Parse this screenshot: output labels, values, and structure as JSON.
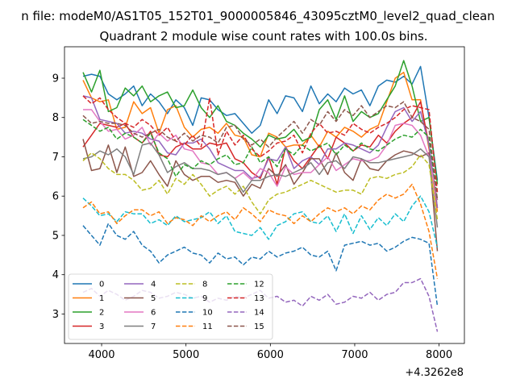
{
  "chart_data": {
    "type": "line",
    "suptitle": "n file: modeM0/AS1T05_152T01_9000005846_43095cztM0_level2_quad_clean",
    "title": "Quadrant 2 module wise count rates with 100.0s bins.",
    "xlabel": "",
    "ylabel": "",
    "x_offset_label": "+4.3262e8",
    "xlim": [
      3560,
      8300
    ],
    "ylim": [
      2.25,
      9.8
    ],
    "xticks": [
      4000,
      5000,
      6000,
      7000,
      8000
    ],
    "yticks": [
      3,
      4,
      5,
      6,
      7,
      8,
      9
    ],
    "x_start": 3780,
    "x_step": 100,
    "legend_position": "lower-left",
    "series": [
      {
        "name": "0",
        "color": "#1f77b4",
        "dash": "solid",
        "values": [
          9.05,
          9.1,
          9.05,
          8.6,
          8.45,
          8.6,
          8.8,
          8.3,
          8.6,
          8.4,
          8.1,
          8.45,
          8.25,
          7.8,
          8.5,
          8.45,
          8.2,
          8.05,
          8.1,
          7.85,
          7.6,
          7.8,
          8.45,
          8.1,
          8.55,
          8.5,
          8.15,
          8.8,
          8.35,
          8.6,
          8.4,
          8.75,
          8.6,
          8.7,
          8.3,
          8.8,
          8.95,
          8.9,
          9.05,
          8.85,
          9.3,
          8.0,
          6.4
        ]
      },
      {
        "name": "1",
        "color": "#ff7f0e",
        "dash": "solid",
        "values": [
          8.95,
          8.5,
          8.4,
          8.45,
          7.7,
          7.75,
          8.4,
          8.1,
          8.25,
          7.6,
          8.2,
          8.3,
          7.75,
          7.5,
          7.7,
          7.75,
          7.6,
          7.85,
          7.55,
          7.5,
          7.05,
          7.0,
          7.6,
          7.5,
          7.25,
          7.3,
          7.3,
          7.55,
          7.25,
          7.65,
          7.5,
          7.75,
          7.65,
          7.5,
          7.7,
          7.8,
          8.4,
          9.0,
          9.15,
          8.45,
          8.45,
          7.2,
          5.6
        ]
      },
      {
        "name": "2",
        "color": "#2ca02c",
        "dash": "solid",
        "values": [
          9.15,
          8.65,
          9.2,
          8.15,
          8.25,
          8.75,
          8.55,
          8.8,
          8.4,
          8.55,
          8.65,
          8.25,
          8.3,
          8.7,
          8.25,
          8.0,
          8.3,
          7.9,
          7.8,
          7.6,
          7.45,
          7.25,
          7.55,
          7.45,
          7.5,
          7.7,
          7.4,
          7.5,
          8.2,
          8.45,
          7.95,
          8.55,
          7.9,
          8.15,
          8.0,
          8.1,
          8.45,
          8.8,
          9.45,
          8.8,
          7.9,
          8.0,
          6.3
        ]
      },
      {
        "name": "3",
        "color": "#d62728",
        "dash": "solid",
        "values": [
          7.25,
          7.55,
          7.85,
          7.8,
          7.75,
          7.85,
          7.5,
          7.35,
          7.65,
          7.05,
          7.0,
          7.25,
          7.35,
          7.2,
          7.2,
          7.35,
          7.3,
          7.35,
          6.95,
          6.85,
          6.6,
          6.45,
          7.0,
          6.3,
          7.25,
          6.9,
          6.7,
          7.0,
          7.3,
          6.95,
          7.5,
          7.35,
          7.15,
          7.3,
          7.25,
          7.55,
          7.35,
          7.65,
          7.85,
          8.0,
          8.4,
          7.3,
          5.7
        ]
      },
      {
        "name": "4",
        "color": "#9467bd",
        "dash": "solid",
        "values": [
          8.55,
          8.5,
          7.95,
          7.9,
          7.85,
          7.6,
          7.65,
          7.6,
          7.45,
          7.4,
          7.1,
          7.05,
          7.35,
          7.35,
          7.45,
          7.2,
          6.85,
          6.75,
          6.65,
          6.65,
          6.45,
          6.5,
          6.95,
          6.9,
          7.25,
          6.7,
          6.9,
          7.0,
          6.8,
          7.2,
          7.2,
          7.35,
          7.3,
          7.2,
          7.1,
          7.3,
          7.75,
          8.15,
          8.25,
          7.9,
          8.15,
          7.3,
          5.7
        ]
      },
      {
        "name": "5",
        "color": "#8c564b",
        "dash": "solid",
        "values": [
          7.45,
          6.65,
          6.7,
          7.3,
          6.6,
          7.25,
          6.5,
          6.6,
          6.9,
          6.55,
          6.25,
          6.9,
          6.55,
          6.4,
          6.5,
          6.5,
          6.35,
          6.4,
          6.35,
          6.0,
          6.3,
          6.2,
          6.7,
          6.5,
          6.8,
          6.3,
          6.6,
          6.95,
          6.95,
          6.55,
          7.1,
          6.6,
          6.4,
          6.95,
          6.7,
          6.65,
          6.9,
          7.05,
          7.15,
          7.1,
          7.0,
          7.1,
          4.6
        ]
      },
      {
        "name": "6",
        "color": "#e377c2",
        "dash": "solid",
        "values": [
          8.2,
          8.2,
          7.9,
          7.65,
          7.7,
          7.45,
          7.55,
          7.75,
          7.3,
          7.6,
          7.4,
          7.55,
          7.2,
          7.15,
          6.85,
          6.8,
          6.55,
          6.6,
          6.45,
          6.6,
          6.4,
          6.7,
          6.6,
          6.25,
          6.75,
          6.55,
          6.6,
          6.6,
          6.8,
          7.0,
          6.65,
          6.8,
          6.95,
          6.9,
          6.9,
          7.0,
          7.3,
          7.8,
          7.85,
          7.8,
          7.55,
          7.0,
          5.9
        ]
      },
      {
        "name": "7",
        "color": "#7f7f7f",
        "dash": "solid",
        "values": [
          6.95,
          7.0,
          7.15,
          7.05,
          7.2,
          7.0,
          6.55,
          7.3,
          7.35,
          7.05,
          6.6,
          6.75,
          6.85,
          6.7,
          6.7,
          6.65,
          6.55,
          6.6,
          6.45,
          6.1,
          6.4,
          6.4,
          6.5,
          6.55,
          6.5,
          6.6,
          6.7,
          6.85,
          6.55,
          6.85,
          6.9,
          6.7,
          7.0,
          6.95,
          6.85,
          6.85,
          6.9,
          6.95,
          7.0,
          7.05,
          7.2,
          7.0,
          5.2
        ]
      },
      {
        "name": "8",
        "color": "#bcbd22",
        "dash": "dashed",
        "values": [
          6.9,
          7.1,
          6.95,
          6.7,
          6.55,
          6.55,
          6.4,
          6.15,
          6.2,
          6.4,
          6.05,
          6.45,
          6.3,
          6.55,
          6.3,
          6.0,
          6.15,
          6.25,
          6.05,
          6.25,
          5.85,
          5.55,
          5.9,
          6.05,
          6.1,
          6.2,
          6.3,
          6.4,
          6.3,
          6.2,
          6.1,
          6.15,
          6.15,
          6.05,
          6.45,
          6.5,
          6.45,
          6.55,
          6.6,
          6.75,
          7.05,
          6.8,
          5.4
        ]
      },
      {
        "name": "9",
        "color": "#17becf",
        "dash": "dashed",
        "values": [
          5.95,
          5.75,
          5.5,
          5.55,
          5.35,
          5.6,
          5.55,
          5.55,
          5.3,
          5.4,
          5.25,
          5.5,
          5.35,
          5.4,
          5.45,
          5.6,
          5.3,
          5.5,
          5.1,
          5.05,
          5.0,
          5.2,
          4.9,
          5.25,
          5.35,
          5.55,
          5.6,
          5.35,
          5.3,
          5.5,
          5.1,
          5.55,
          5.05,
          5.5,
          5.15,
          5.45,
          5.25,
          5.55,
          5.35,
          5.75,
          6.0,
          5.6,
          4.7
        ]
      },
      {
        "name": "10",
        "color": "#1f77b4",
        "dash": "dashed",
        "values": [
          5.25,
          5.0,
          4.75,
          5.3,
          5.0,
          4.9,
          5.1,
          4.75,
          4.6,
          4.3,
          4.5,
          4.6,
          4.7,
          4.55,
          4.5,
          4.3,
          4.55,
          4.4,
          4.45,
          4.25,
          4.45,
          4.4,
          4.6,
          4.45,
          4.55,
          4.6,
          4.7,
          4.5,
          4.45,
          4.6,
          4.1,
          4.75,
          4.8,
          4.85,
          4.75,
          4.8,
          4.6,
          4.7,
          4.85,
          4.95,
          4.9,
          4.8,
          3.2
        ]
      },
      {
        "name": "11",
        "color": "#ff7f0e",
        "dash": "dashed",
        "values": [
          5.7,
          5.85,
          5.55,
          5.6,
          5.3,
          5.5,
          5.65,
          5.65,
          5.5,
          5.6,
          5.3,
          5.45,
          5.4,
          5.25,
          5.5,
          5.35,
          5.5,
          5.6,
          5.4,
          5.7,
          5.55,
          5.35,
          5.65,
          5.55,
          5.5,
          5.3,
          5.5,
          5.35,
          5.55,
          5.7,
          5.6,
          5.7,
          5.55,
          5.75,
          5.65,
          5.9,
          6.05,
          5.95,
          6.05,
          6.3,
          5.8,
          5.1,
          3.9
        ]
      },
      {
        "name": "12",
        "color": "#2ca02c",
        "dash": "dashed",
        "values": [
          7.95,
          7.8,
          7.65,
          7.75,
          7.45,
          7.6,
          7.5,
          7.35,
          7.6,
          7.1,
          6.95,
          6.5,
          6.8,
          6.7,
          6.9,
          6.8,
          6.95,
          7.05,
          6.8,
          6.85,
          7.25,
          6.85,
          7.0,
          6.75,
          7.2,
          7.05,
          7.3,
          7.15,
          7.25,
          7.35,
          7.05,
          7.3,
          7.15,
          7.35,
          7.2,
          7.15,
          7.3,
          7.45,
          7.55,
          7.5,
          7.7,
          7.5,
          5.9
        ]
      },
      {
        "name": "13",
        "color": "#d62728",
        "dash": "dashed",
        "values": [
          8.55,
          8.35,
          8.5,
          8.2,
          8.0,
          7.85,
          7.75,
          7.95,
          7.8,
          7.55,
          7.75,
          7.4,
          7.3,
          7.55,
          7.25,
          8.5,
          7.05,
          7.65,
          7.3,
          7.55,
          7.2,
          7.0,
          7.15,
          7.35,
          7.4,
          7.55,
          7.1,
          7.6,
          7.85,
          7.6,
          7.65,
          7.55,
          7.85,
          7.7,
          7.6,
          7.75,
          7.85,
          8.0,
          8.2,
          8.3,
          8.25,
          8.2,
          6.1
        ]
      },
      {
        "name": "14",
        "color": "#9467bd",
        "dash": "dashed",
        "values": [
          3.55,
          3.65,
          3.45,
          3.6,
          3.5,
          3.35,
          3.45,
          3.6,
          3.55,
          3.4,
          3.45,
          3.55,
          3.5,
          3.4,
          3.45,
          3.3,
          3.4,
          3.35,
          3.45,
          3.4,
          3.5,
          3.6,
          3.4,
          3.45,
          3.3,
          3.35,
          3.2,
          3.45,
          3.35,
          3.5,
          3.25,
          3.3,
          3.45,
          3.4,
          3.55,
          3.35,
          3.5,
          3.55,
          3.8,
          3.8,
          3.9,
          3.45,
          2.55
        ]
      },
      {
        "name": "15",
        "color": "#8c564b",
        "dash": "dashed",
        "values": [
          8.05,
          7.85,
          7.9,
          7.85,
          7.85,
          7.8,
          7.6,
          7.5,
          7.6,
          7.7,
          7.5,
          7.4,
          7.6,
          7.4,
          7.55,
          7.5,
          7.35,
          7.75,
          7.8,
          7.45,
          7.3,
          7.45,
          7.25,
          7.5,
          7.7,
          7.9,
          7.6,
          7.95,
          7.8,
          8.15,
          7.9,
          8.2,
          8.05,
          8.3,
          8.0,
          8.15,
          8.3,
          8.25,
          8.4,
          8.0,
          7.9,
          7.7,
          5.9
        ]
      }
    ]
  }
}
